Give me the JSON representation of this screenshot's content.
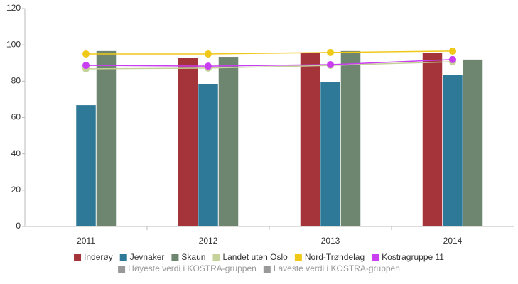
{
  "chart_data": {
    "type": "bar",
    "categories": [
      "2011",
      "2012",
      "2013",
      "2014"
    ],
    "series": [
      {
        "name": "Inderøy",
        "color": "#a4343a",
        "type": "bar",
        "values": [
          null,
          93.0,
          95.4,
          95.4
        ]
      },
      {
        "name": "Jevnaker",
        "color": "#2e7898",
        "type": "bar",
        "values": [
          66.8,
          78.2,
          79.4,
          83.3
        ]
      },
      {
        "name": "Skaun",
        "color": "#6e8670",
        "type": "bar",
        "values": [
          96.6,
          93.4,
          96.6,
          91.9
        ]
      },
      {
        "name": "Landet uten Oslo",
        "color": "#c5d29a",
        "type": "line",
        "values": [
          86.8,
          87.2,
          88.7,
          90.7
        ]
      },
      {
        "name": "Nord-Trøndelag",
        "color": "#f0c818",
        "type": "line",
        "values": [
          95.0,
          95.0,
          95.8,
          96.6
        ]
      },
      {
        "name": "Kostragruppe 11",
        "color": "#c93ef0",
        "type": "line",
        "values": [
          88.7,
          88.3,
          89.1,
          91.9
        ]
      },
      {
        "name": "Høyeste verdi i KOSTRA-gruppen",
        "color": "#999999",
        "type": "line",
        "visible": false,
        "values": [
          null,
          null,
          null,
          null
        ]
      },
      {
        "name": "Laveste verdi i KOSTRA-gruppen",
        "color": "#999999",
        "type": "line",
        "visible": false,
        "values": [
          null,
          null,
          null,
          null
        ]
      }
    ],
    "ylim": [
      0,
      120
    ],
    "yticks": [
      0,
      20,
      40,
      60,
      80,
      100,
      120
    ],
    "grid": false
  }
}
